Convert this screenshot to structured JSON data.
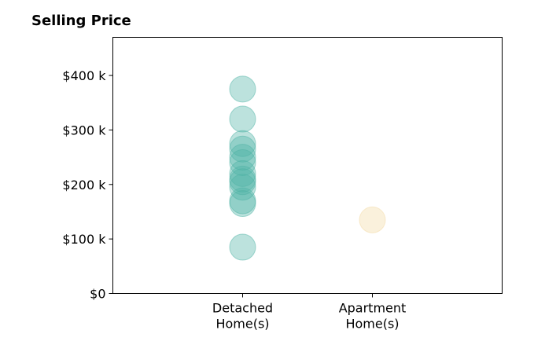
{
  "chart_data": {
    "type": "scatter",
    "title": "Selling Price",
    "xlabel": "",
    "ylabel": "",
    "categories": [
      "Detached\nHome(s)",
      "Apartment\nHome(s)"
    ],
    "category_positions": [
      1,
      2
    ],
    "xlim": [
      0,
      3
    ],
    "ylim": [
      0,
      470
    ],
    "yticks": [
      {
        "value": 0,
        "label": "$0"
      },
      {
        "value": 100,
        "label": "$100 k"
      },
      {
        "value": 200,
        "label": "$200 k"
      },
      {
        "value": 300,
        "label": "$300 k"
      },
      {
        "value": 400,
        "label": "$400 k"
      }
    ],
    "grid": false,
    "series": [
      {
        "category": "Detached\nHome(s)",
        "color": "#4fb3a6",
        "values": [
          85,
          165,
          170,
          195,
          205,
          210,
          220,
          240,
          250,
          265,
          275,
          320,
          375
        ]
      },
      {
        "category": "Apartment\nHome(s)",
        "color": "#f3d9a4",
        "values": [
          135
        ]
      }
    ]
  }
}
